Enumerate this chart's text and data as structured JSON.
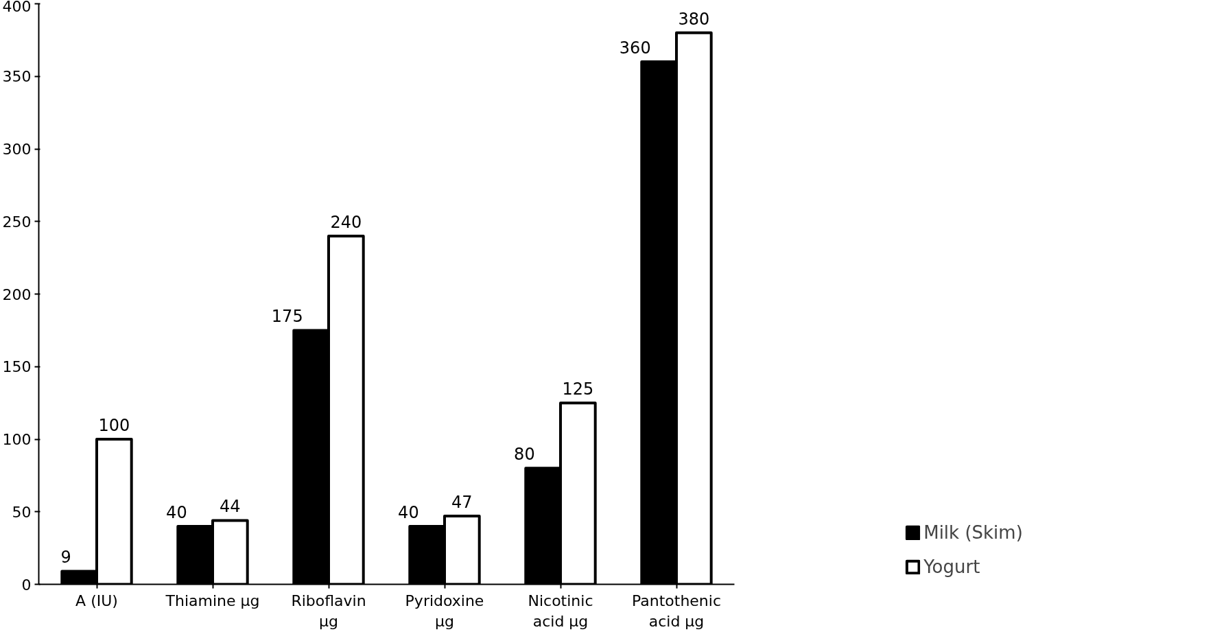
{
  "chart_data": {
    "type": "bar",
    "categories": [
      "A (IU)",
      "Thiamine µg",
      "Riboflavin µg",
      "Pyridoxine µg",
      "Nicotinic acid µg",
      "Pantothenic acid µg"
    ],
    "series": [
      {
        "name": "Milk (Skim)",
        "color": "#000000",
        "values": [
          9,
          40,
          175,
          40,
          80,
          360
        ]
      },
      {
        "name": "Yogurt",
        "color": "#ffffff",
        "values": [
          100,
          44,
          240,
          47,
          125,
          380
        ]
      }
    ],
    "ylim": [
      0,
      400
    ],
    "yticks": [
      0,
      50,
      100,
      150,
      200,
      250,
      300,
      350,
      400
    ],
    "data_labels": true,
    "legend": "right",
    "grid": false
  }
}
